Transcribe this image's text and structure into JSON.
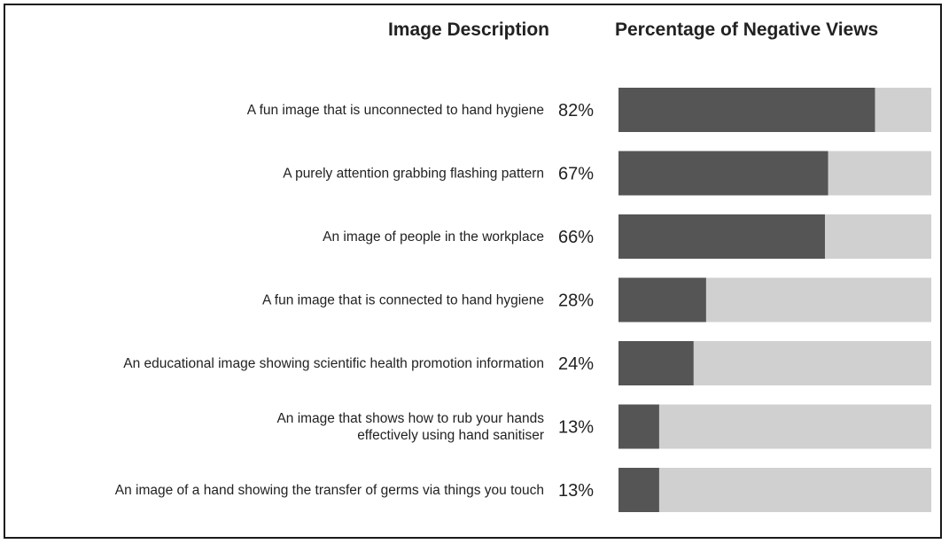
{
  "chart_data": {
    "type": "bar",
    "orientation": "horizontal",
    "stacked": true,
    "column_headers": {
      "description": "Image Description",
      "percentage": "Percentage of Negative Views"
    },
    "categories": [
      [
        "A fun image that is unconnected to hand hygiene"
      ],
      [
        "A purely attention grabbing flashing pattern"
      ],
      [
        "An image of people in the workplace"
      ],
      [
        "A fun image that is connected to hand hygiene"
      ],
      [
        "An educational image showing scientific health promotion information"
      ],
      [
        "An image that shows how to rub your hands",
        "effectively using hand sanitiser"
      ],
      [
        "An image of a hand showing the transfer of germs via things you touch"
      ]
    ],
    "values": [
      82,
      67,
      66,
      28,
      24,
      13,
      13
    ],
    "value_labels": [
      "82%",
      "67%",
      "66%",
      "28%",
      "24%",
      "13%",
      "13%"
    ],
    "xlim": [
      0,
      100
    ],
    "colors": {
      "negative": "#555555",
      "remainder": "#d0d0d0",
      "border": "#1a1a1a"
    },
    "grid": false,
    "legend": "none"
  }
}
